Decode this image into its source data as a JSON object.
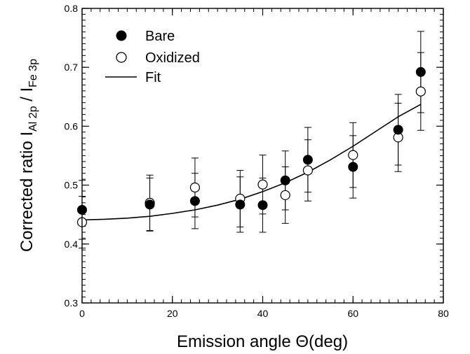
{
  "chart_data": {
    "type": "scatter",
    "xlabel": "Emission angle ",
    "xlabel_symbol": "Θ",
    "xlabel_unit": "(deg)",
    "ylabel_main": "Corrected ratio I",
    "ylabel_sub1": "Al 2p",
    "ylabel_sep": " / I",
    "ylabel_sub2": "Fe 3p",
    "xlim": [
      0,
      80
    ],
    "ylim": [
      0.3,
      0.8
    ],
    "x_ticks": [
      0,
      20,
      40,
      60,
      80
    ],
    "x_tick_labels": [
      "0",
      "20",
      "40",
      "60",
      "80"
    ],
    "y_ticks": [
      0.3,
      0.4,
      0.5,
      0.6,
      0.7,
      0.8
    ],
    "y_tick_labels": [
      "0.3",
      "0.4",
      "0.5",
      "0.6",
      "0.7",
      "0.8"
    ],
    "grid": false,
    "legend_position": "top-left",
    "series": [
      {
        "name": "Bare",
        "marker": "filled-circle",
        "x": [
          0,
          15,
          25,
          35,
          40,
          45,
          50,
          60,
          70,
          75
        ],
        "y": [
          0.458,
          0.467,
          0.473,
          0.467,
          0.466,
          0.508,
          0.543,
          0.531,
          0.594,
          0.692
        ],
        "yerr": [
          0.05,
          0.045,
          0.047,
          0.047,
          0.046,
          0.05,
          0.055,
          0.053,
          0.06,
          0.069
        ]
      },
      {
        "name": "Oxidized",
        "marker": "open-circle",
        "x": [
          0,
          15,
          25,
          35,
          40,
          45,
          50,
          60,
          70,
          75
        ],
        "y": [
          0.437,
          0.47,
          0.496,
          0.477,
          0.501,
          0.483,
          0.525,
          0.551,
          0.581,
          0.659
        ],
        "yerr": [
          0.044,
          0.047,
          0.05,
          0.048,
          0.05,
          0.048,
          0.052,
          0.055,
          0.058,
          0.066
        ]
      },
      {
        "name": "Fit",
        "marker": "line",
        "x": [
          0,
          5,
          10,
          15,
          20,
          25,
          30,
          35,
          40,
          45,
          50,
          55,
          60,
          65,
          70,
          75
        ],
        "y": [
          0.441,
          0.442,
          0.444,
          0.447,
          0.452,
          0.458,
          0.466,
          0.476,
          0.489,
          0.504,
          0.522,
          0.543,
          0.566,
          0.591,
          0.616,
          0.637
        ]
      }
    ]
  }
}
